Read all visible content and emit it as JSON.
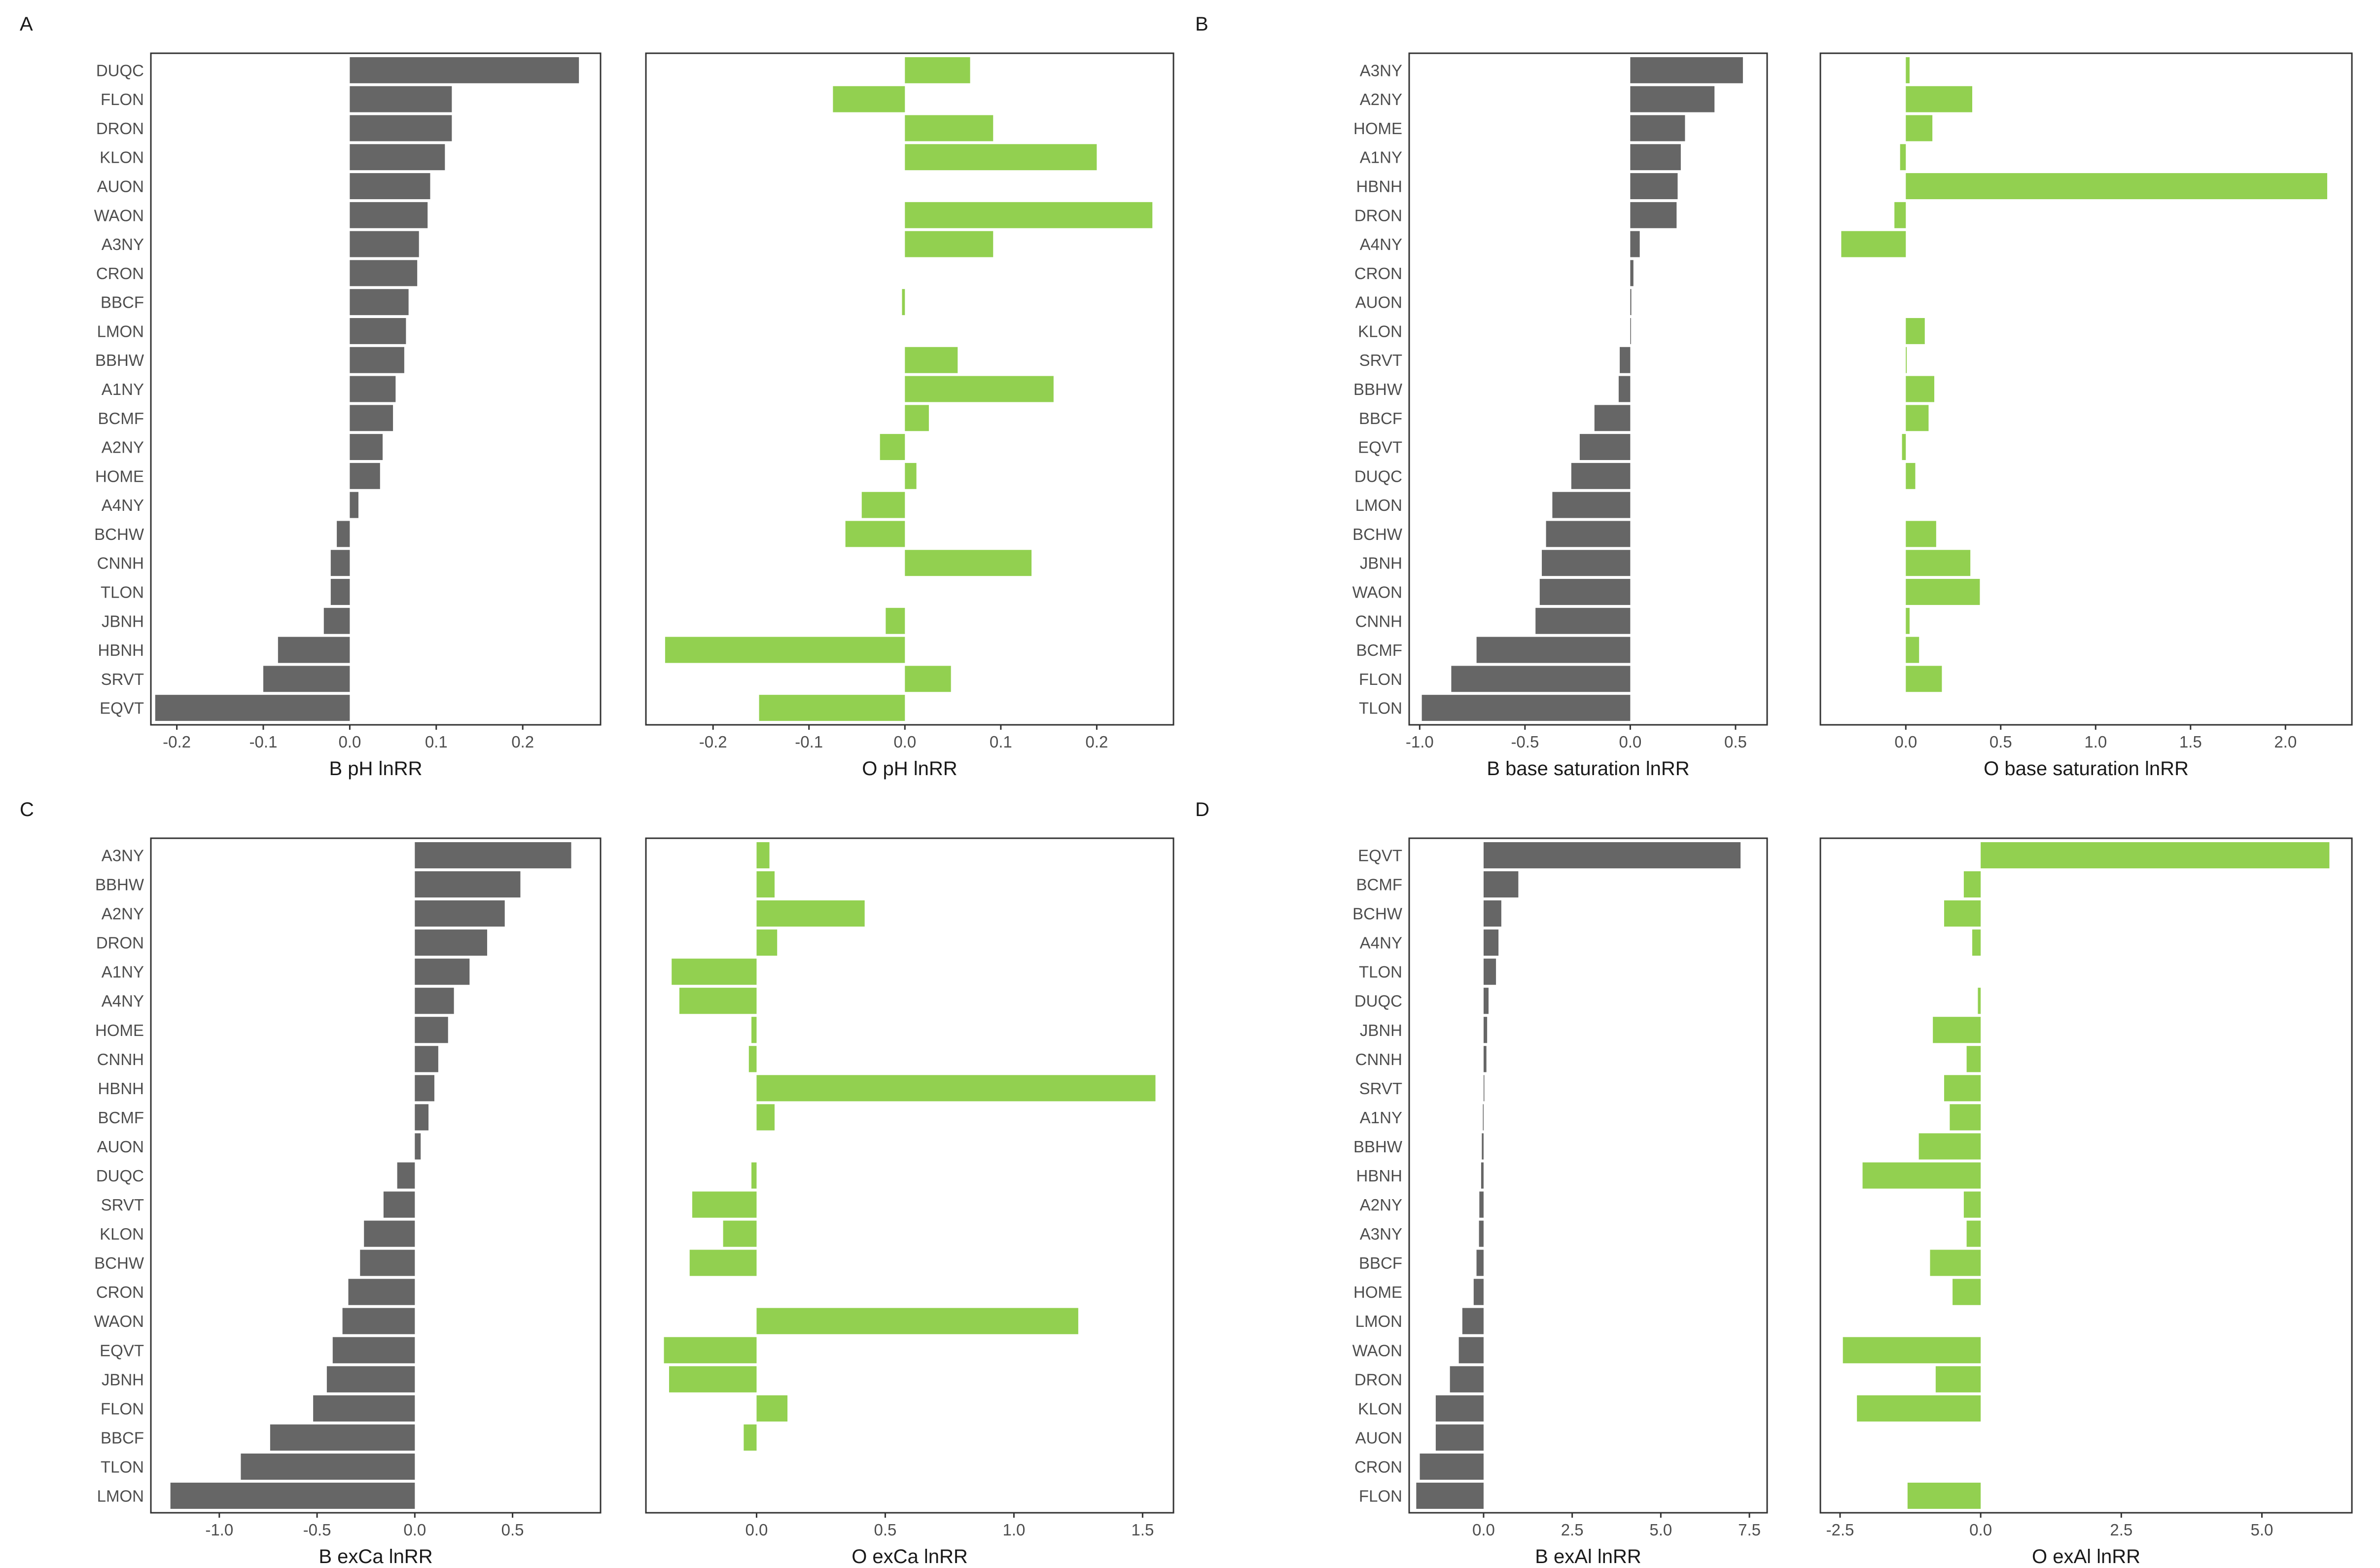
{
  "colors": {
    "B": "#666666",
    "O": "#92d050",
    "frame": "#333333",
    "text": "#4d4d4d",
    "axis_title": "#1a1a1a"
  },
  "chart_data": [
    {
      "panel": "A",
      "type": "bar",
      "left": {
        "xlabel": "B pH lnRR",
        "xlim": [
          -0.23,
          0.29
        ],
        "ticks": [
          -0.2,
          -0.1,
          0.0,
          0.1,
          0.2
        ],
        "tick_labels": [
          "-0.2",
          "-0.1",
          "0.0",
          "0.1",
          "0.2"
        ],
        "categories": [
          "DUQC",
          "FLON",
          "DRON",
          "KLON",
          "AUON",
          "WAON",
          "A3NY",
          "CRON",
          "BBCF",
          "LMON",
          "BBHW",
          "A1NY",
          "BCMF",
          "A2NY",
          "HOME",
          "A4NY",
          "BCHW",
          "CNNH",
          "TLON",
          "JBNH",
          "HBNH",
          "SRVT",
          "EQVT"
        ],
        "values": [
          0.265,
          0.118,
          0.118,
          0.11,
          0.093,
          0.09,
          0.08,
          0.078,
          0.068,
          0.065,
          0.063,
          0.053,
          0.05,
          0.038,
          0.035,
          0.01,
          -0.015,
          -0.022,
          -0.022,
          -0.03,
          -0.083,
          -0.1,
          -0.225
        ]
      },
      "right": {
        "xlabel": "O pH lnRR",
        "xlim": [
          -0.27,
          0.28
        ],
        "ticks": [
          -0.2,
          -0.1,
          0.0,
          0.1,
          0.2
        ],
        "tick_labels": [
          "-0.2",
          "-0.1",
          "0.0",
          "0.1",
          "0.2"
        ],
        "values": [
          0.068,
          -0.075,
          0.092,
          0.2,
          null,
          0.258,
          0.092,
          null,
          -0.003,
          null,
          0.055,
          0.155,
          0.025,
          -0.026,
          0.012,
          -0.045,
          -0.062,
          0.132,
          null,
          -0.02,
          -0.25,
          0.048,
          -0.152
        ]
      }
    },
    {
      "panel": "B",
      "type": "bar",
      "left": {
        "xlabel": "B base saturation lnRR",
        "xlim": [
          -1.05,
          0.65
        ],
        "ticks": [
          -1.0,
          -0.5,
          0.0,
          0.5
        ],
        "tick_labels": [
          "-1.0",
          "-0.5",
          "0.0",
          "0.5"
        ],
        "categories": [
          "A3NY",
          "A2NY",
          "HOME",
          "A1NY",
          "HBNH",
          "DRON",
          "A4NY",
          "CRON",
          "AUON",
          "KLON",
          "SRVT",
          "BBHW",
          "BBCF",
          "EQVT",
          "DUQC",
          "LMON",
          "BCHW",
          "JBNH",
          "WAON",
          "CNNH",
          "BCMF",
          "FLON",
          "TLON"
        ],
        "values": [
          0.535,
          0.4,
          0.26,
          0.24,
          0.225,
          0.22,
          0.045,
          0.015,
          0.005,
          0.002,
          -0.05,
          -0.055,
          -0.17,
          -0.24,
          -0.28,
          -0.37,
          -0.4,
          -0.42,
          -0.43,
          -0.45,
          -0.73,
          -0.85,
          -0.99
        ]
      },
      "right": {
        "xlabel": "O base saturation lnRR",
        "xlim": [
          -0.45,
          2.35
        ],
        "ticks": [
          0.0,
          0.5,
          1.0,
          1.5,
          2.0
        ],
        "tick_labels": [
          "0.0",
          "0.5",
          "1.0",
          "1.5",
          "2.0"
        ],
        "values": [
          0.02,
          0.35,
          0.14,
          -0.03,
          2.22,
          -0.06,
          -0.34,
          null,
          null,
          0.1,
          0.005,
          0.15,
          0.12,
          -0.02,
          0.05,
          null,
          0.16,
          0.34,
          0.39,
          0.02,
          0.07,
          0.19,
          null
        ]
      }
    },
    {
      "panel": "C",
      "type": "bar",
      "left": {
        "xlabel": "B exCa lnRR",
        "xlim": [
          -1.35,
          0.95
        ],
        "ticks": [
          -1.0,
          -0.5,
          0.0,
          0.5
        ],
        "tick_labels": [
          "-1.0",
          "-0.5",
          "0.0",
          "0.5"
        ],
        "categories": [
          "A3NY",
          "BBHW",
          "A2NY",
          "DRON",
          "A1NY",
          "A4NY",
          "HOME",
          "CNNH",
          "HBNH",
          "BCMF",
          "AUON",
          "DUQC",
          "SRVT",
          "KLON",
          "BCHW",
          "CRON",
          "WAON",
          "EQVT",
          "JBNH",
          "FLON",
          "BBCF",
          "TLON",
          "LMON"
        ],
        "values": [
          0.8,
          0.54,
          0.46,
          0.37,
          0.28,
          0.2,
          0.17,
          0.12,
          0.1,
          0.07,
          0.03,
          -0.09,
          -0.16,
          -0.26,
          -0.28,
          -0.34,
          -0.37,
          -0.42,
          -0.45,
          -0.52,
          -0.74,
          -0.89,
          -1.25
        ]
      },
      "right": {
        "xlabel": "O exCa lnRR",
        "xlim": [
          -0.43,
          1.62
        ],
        "ticks": [
          0.0,
          0.5,
          1.0,
          1.5
        ],
        "tick_labels": [
          "0.0",
          "0.5",
          "1.0",
          "1.5"
        ],
        "values": [
          0.05,
          0.07,
          0.42,
          0.08,
          -0.33,
          -0.3,
          -0.02,
          -0.03,
          1.55,
          0.07,
          null,
          -0.02,
          -0.25,
          -0.13,
          -0.26,
          null,
          1.25,
          -0.36,
          -0.34,
          0.12,
          -0.05,
          null,
          null
        ]
      }
    },
    {
      "panel": "D",
      "type": "bar",
      "left": {
        "xlabel": "B exAl lnRR",
        "xlim": [
          -2.1,
          8.0
        ],
        "ticks": [
          0.0,
          2.5,
          5.0,
          7.5
        ],
        "tick_labels": [
          "0.0",
          "2.5",
          "5.0",
          "7.5"
        ],
        "categories": [
          "EQVT",
          "BCMF",
          "BCHW",
          "A4NY",
          "TLON",
          "DUQC",
          "JBNH",
          "CNNH",
          "SRVT",
          "A1NY",
          "BBHW",
          "HBNH",
          "A2NY",
          "A3NY",
          "BBCF",
          "HOME",
          "LMON",
          "WAON",
          "DRON",
          "KLON",
          "AUON",
          "CRON",
          "FLON"
        ],
        "values": [
          7.25,
          0.98,
          0.5,
          0.42,
          0.35,
          0.14,
          0.1,
          0.08,
          0.01,
          -0.02,
          -0.05,
          -0.07,
          -0.12,
          -0.13,
          -0.2,
          -0.28,
          -0.6,
          -0.7,
          -0.95,
          -1.35,
          -1.35,
          -1.8,
          -1.9
        ]
      },
      "right": {
        "xlabel": "O exAl lnRR",
        "xlim": [
          -2.85,
          6.6
        ],
        "ticks": [
          -2.5,
          0.0,
          2.5,
          5.0
        ],
        "tick_labels": [
          "-2.5",
          "0.0",
          "2.5",
          "5.0"
        ],
        "values": [
          6.2,
          -0.3,
          -0.65,
          -0.15,
          null,
          -0.05,
          -0.85,
          -0.25,
          -0.65,
          -0.55,
          -1.1,
          -2.1,
          -0.3,
          -0.25,
          -0.9,
          -0.5,
          null,
          -2.45,
          -0.8,
          -2.2,
          null,
          null,
          -1.3
        ]
      }
    }
  ]
}
